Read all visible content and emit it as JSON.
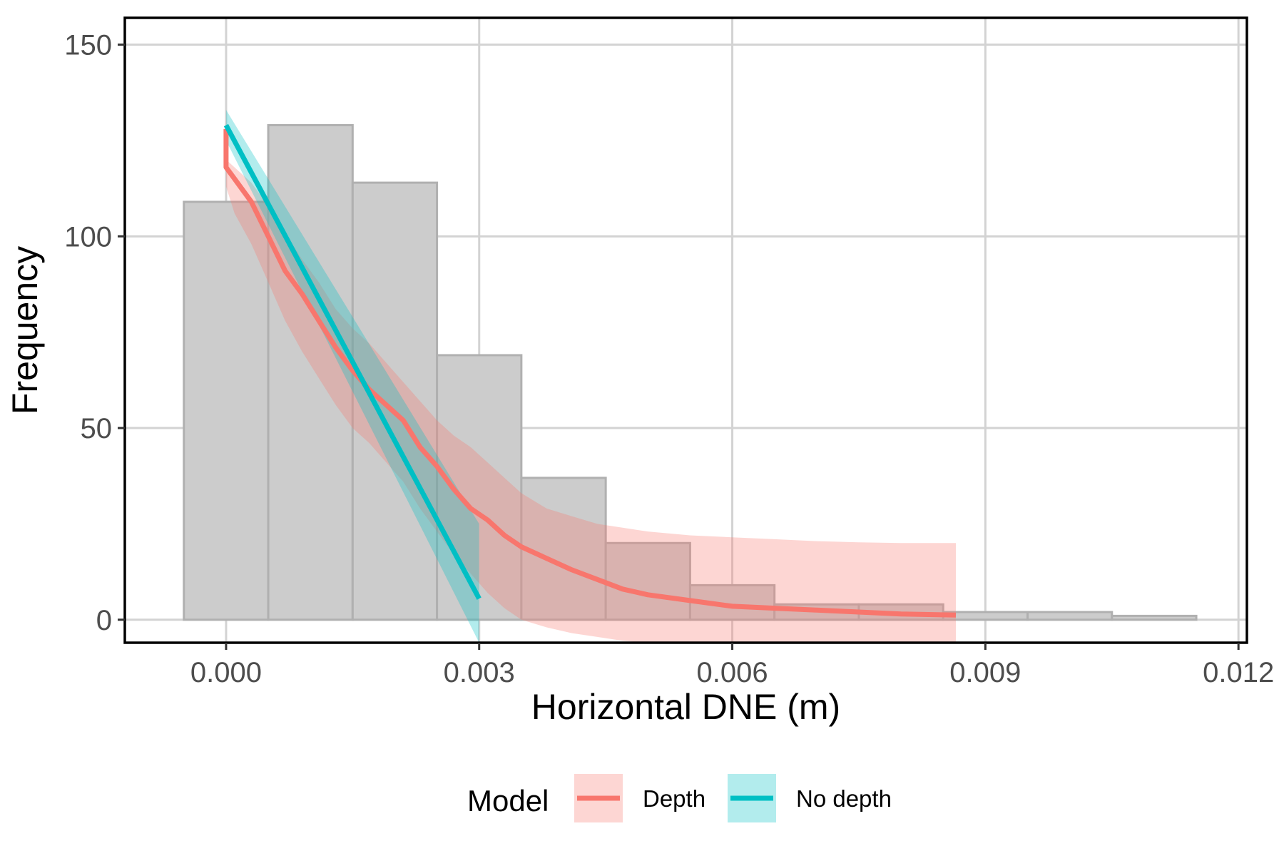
{
  "chart_data": {
    "type": "histogram",
    "title": "",
    "xlabel": "Horizontal DNE (m)",
    "ylabel": "Frequency",
    "xlim": [
      -0.0012,
      0.0121
    ],
    "ylim": [
      -6,
      157
    ],
    "x_ticks": [
      0.0,
      0.003,
      0.006,
      0.009,
      0.012
    ],
    "x_tick_labels": [
      "0.000",
      "0.003",
      "0.006",
      "0.009",
      "0.012"
    ],
    "y_ticks": [
      0,
      50,
      100,
      150
    ],
    "y_tick_labels": [
      "0",
      "50",
      "100",
      "150"
    ],
    "grid": true,
    "colors": {
      "bar_fill": "#cccccc",
      "bar_stroke": "#b0b0b0",
      "grid": "#d3d3d3",
      "depth": "#f8766d",
      "no_depth": "#00bfc4"
    },
    "bins": [
      {
        "x0": -0.0005,
        "x1": 0.0005,
        "count": 109
      },
      {
        "x0": 0.0005,
        "x1": 0.0015,
        "count": 129
      },
      {
        "x0": 0.0015,
        "x1": 0.0025,
        "count": 114
      },
      {
        "x0": 0.0025,
        "x1": 0.0035,
        "count": 69
      },
      {
        "x0": 0.0035,
        "x1": 0.0045,
        "count": 37
      },
      {
        "x0": 0.0045,
        "x1": 0.0055,
        "count": 20
      },
      {
        "x0": 0.0055,
        "x1": 0.0065,
        "count": 9
      },
      {
        "x0": 0.0065,
        "x1": 0.0075,
        "count": 4
      },
      {
        "x0": 0.0075,
        "x1": 0.0085,
        "count": 4
      },
      {
        "x0": 0.0085,
        "x1": 0.0095,
        "count": 2
      },
      {
        "x0": 0.0095,
        "x1": 0.0105,
        "count": 2
      },
      {
        "x0": 0.0105,
        "x1": 0.0115,
        "count": 1
      }
    ],
    "series": [
      {
        "name": "Depth",
        "type": "line",
        "x": [
          0.0,
          0.0,
          0.0001,
          0.0003,
          0.0005,
          0.0007,
          0.0009,
          0.0011,
          0.0013,
          0.0015,
          0.0017,
          0.0019,
          0.0021,
          0.0023,
          0.0025,
          0.0027,
          0.0029,
          0.0031,
          0.0033,
          0.0035,
          0.0038,
          0.0041,
          0.0044,
          0.0047,
          0.005,
          0.0055,
          0.006,
          0.0065,
          0.007,
          0.0075,
          0.008,
          0.00865
        ],
        "y": [
          128,
          118,
          115,
          109,
          100,
          91,
          85,
          78,
          71,
          65,
          60,
          56,
          52,
          45,
          40,
          34,
          29,
          26,
          22,
          19,
          16,
          13,
          10.5,
          8,
          6.5,
          5,
          3.5,
          3,
          2.5,
          2,
          1.5,
          1.2
        ],
        "lower": [
          125,
          113,
          106,
          98,
          88,
          78,
          70,
          63,
          56,
          50,
          46,
          41,
          36,
          29,
          23,
          17,
          12,
          7,
          3,
          0,
          -2,
          -3.5,
          -4.5,
          -5.5,
          -6,
          -6,
          -6,
          -6,
          -6,
          -6,
          -6,
          -6
        ],
        "upper": [
          131,
          120,
          118,
          114,
          108,
          101,
          94,
          88,
          81,
          76,
          72,
          67,
          62,
          57,
          52,
          48,
          45,
          41,
          37,
          33,
          29,
          27,
          25,
          24,
          23,
          22,
          21.5,
          21,
          20.5,
          20.2,
          20,
          20
        ]
      },
      {
        "name": "No depth",
        "type": "line",
        "x": [
          0.0,
          0.003
        ],
        "y": [
          129,
          5.5
        ],
        "lower": [
          125,
          -6
        ],
        "upper": [
          133,
          25
        ]
      }
    ],
    "legend": {
      "title": "Model",
      "position": "bottom",
      "entries": [
        "Depth",
        "No depth"
      ]
    }
  }
}
